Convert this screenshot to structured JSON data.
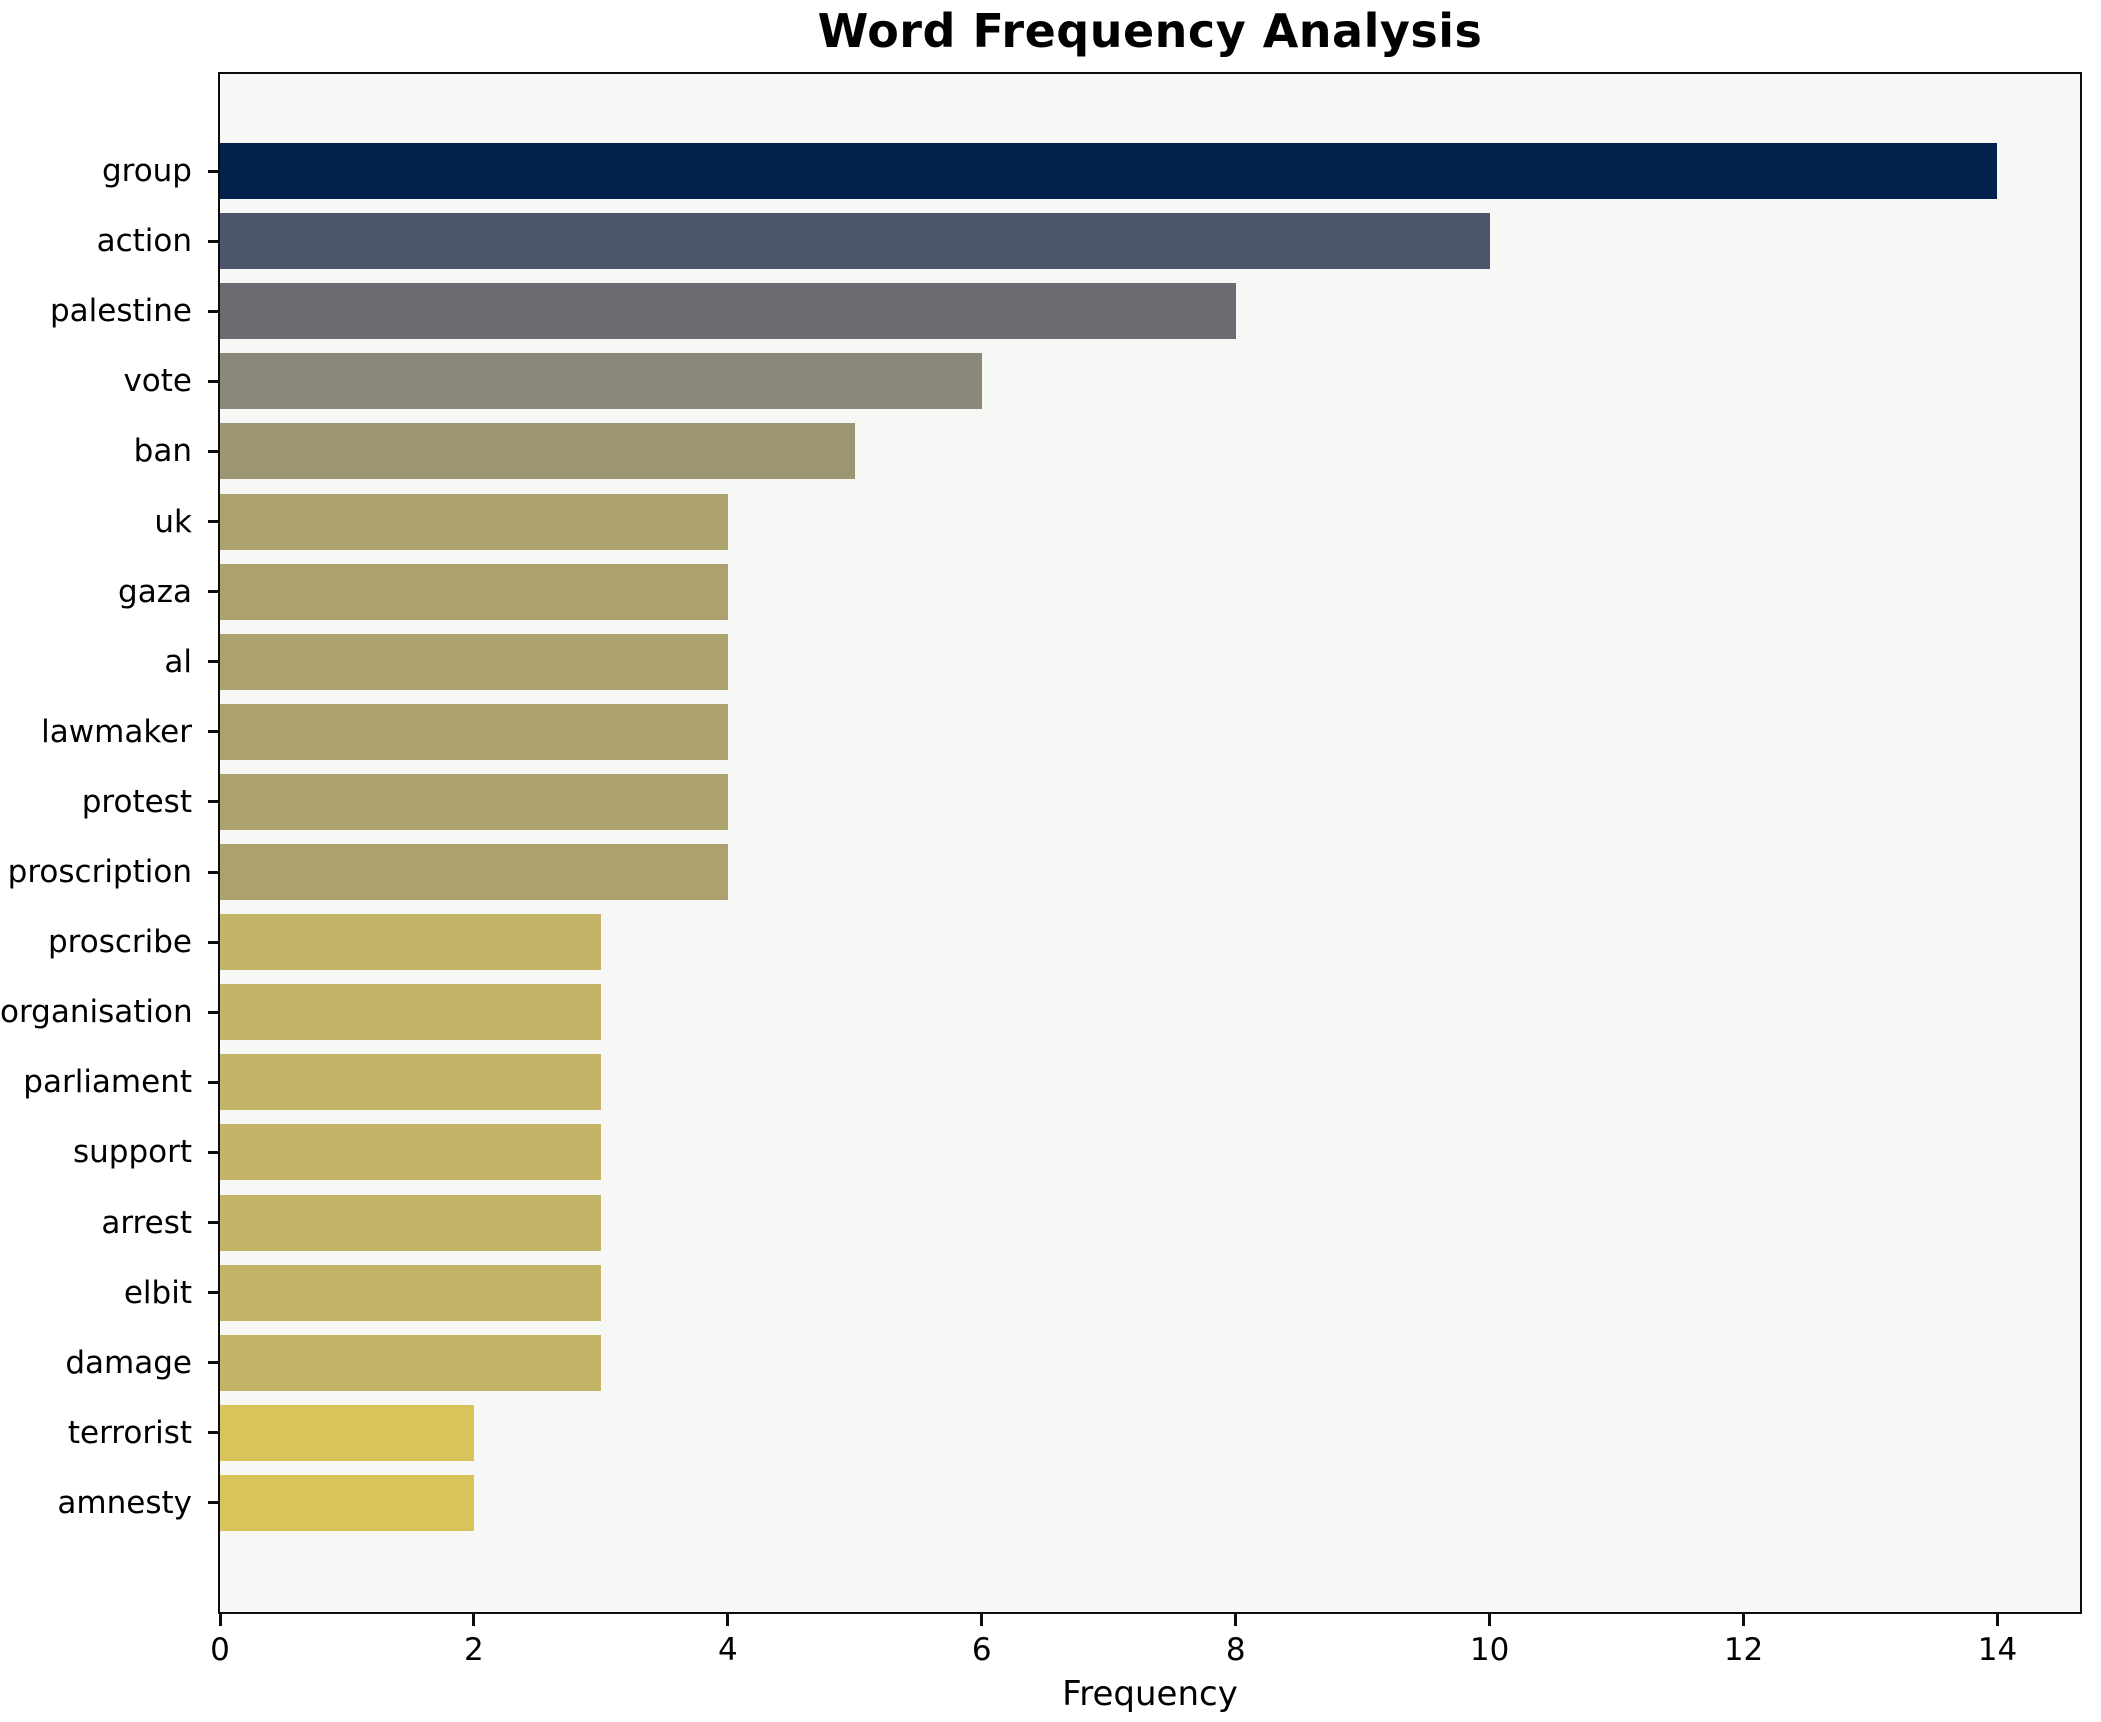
{
  "chart_data": {
    "type": "bar",
    "orientation": "horizontal",
    "title": "Word Frequency Analysis",
    "xlabel": "Frequency",
    "ylabel": "",
    "categories": [
      "group",
      "action",
      "palestine",
      "vote",
      "ban",
      "uk",
      "gaza",
      "al",
      "lawmaker",
      "protest",
      "proscription",
      "proscribe",
      "organisation",
      "parliament",
      "support",
      "arrest",
      "elbit",
      "damage",
      "terrorist",
      "amnesty"
    ],
    "values": [
      14,
      10,
      8,
      6,
      5,
      4,
      4,
      4,
      4,
      4,
      4,
      3,
      3,
      3,
      3,
      3,
      3,
      3,
      2,
      2
    ],
    "bar_colors": [
      "#02234d",
      "#4c556c",
      "#6b6c71",
      "#8b8779",
      "#9c9671",
      "#aca26d",
      "#aca26d",
      "#aca26d",
      "#aca26d",
      "#aca26d",
      "#aca26d",
      "#c4b468",
      "#c4b468",
      "#c4b468",
      "#c4b468",
      "#c4b468",
      "#c4b468",
      "#c4b468",
      "#d9c45c",
      "#d9c45c"
    ],
    "xticks": [
      0,
      2,
      4,
      6,
      8,
      10,
      12,
      14
    ],
    "xlim": [
      0,
      14.65
    ],
    "grid": false,
    "legend": null,
    "plot_background": "#f7f7f5",
    "frame_color": "#0c0c0c"
  }
}
